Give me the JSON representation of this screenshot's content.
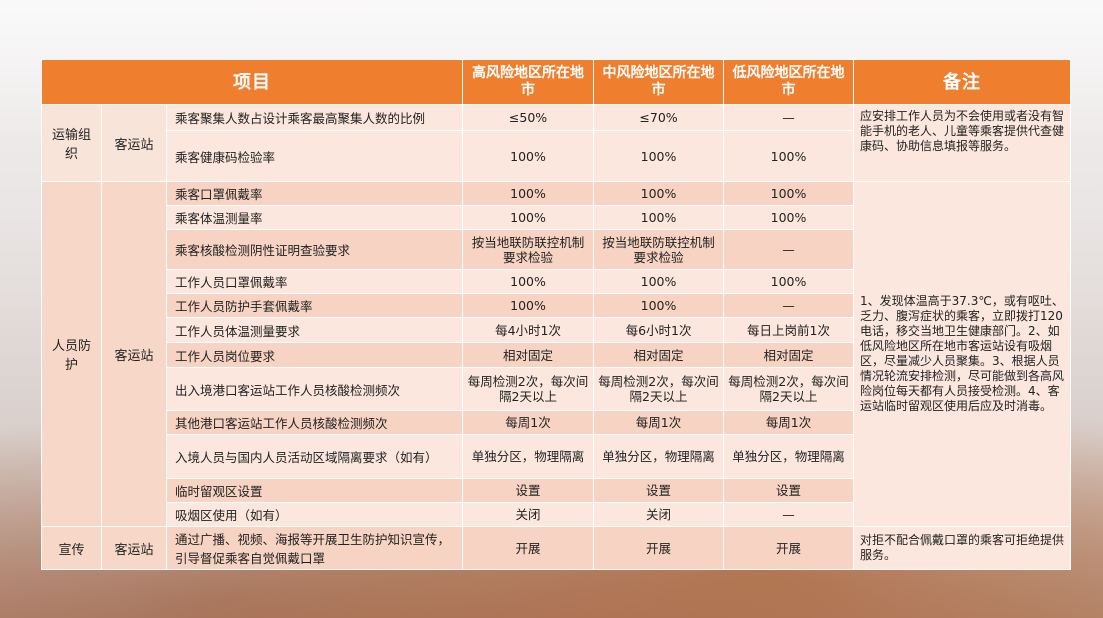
{
  "header": {
    "item": "项目",
    "high": "高风险地区所在地市",
    "mid": "中风险地区所在地市",
    "low": "低风险地区所在地市",
    "remark": "备注"
  },
  "groups": {
    "transport": {
      "cat": "运输组织",
      "sub": "客运站"
    },
    "protection": {
      "cat": "人员防护",
      "sub": "客运站"
    },
    "publicity": {
      "cat": "宣传",
      "sub": "客运站"
    }
  },
  "rows": [
    {
      "item": "乘客聚集人数占设计乘客最高聚集人数的比例",
      "high": "≤50%",
      "mid": "≤70%",
      "low": "—"
    },
    {
      "item": "乘客健康码检验率",
      "high": "100%",
      "mid": "100%",
      "low": "100%"
    },
    {
      "item": "乘客口罩佩戴率",
      "high": "100%",
      "mid": "100%",
      "low": "100%"
    },
    {
      "item": "乘客体温测量率",
      "high": "100%",
      "mid": "100%",
      "low": "100%"
    },
    {
      "item": "乘客核酸检测阴性证明查验要求",
      "high": "按当地联防联控机制要求检验",
      "mid": "按当地联防联控机制要求检验",
      "low": "—"
    },
    {
      "item": "工作人员口罩佩戴率",
      "high": "100%",
      "mid": "100%",
      "low": "100%"
    },
    {
      "item": "工作人员防护手套佩戴率",
      "high": "100%",
      "mid": "100%",
      "low": "—"
    },
    {
      "item": "工作人员体温测量要求",
      "high": "每4小时1次",
      "mid": "每6小时1次",
      "low": "每日上岗前1次"
    },
    {
      "item": "工作人员岗位要求",
      "high": "相对固定",
      "mid": "相对固定",
      "low": "相对固定"
    },
    {
      "item": "出入境港口客运站工作人员核酸检测频次",
      "high": "每周检测2次，每次间隔2天以上",
      "mid": "每周检测2次，每次间隔2天以上",
      "low": "每周检测2次，每次间隔2天以上"
    },
    {
      "item": "其他港口客运站工作人员核酸检测频次",
      "high": "每周1次",
      "mid": "每周1次",
      "low": "每周1次"
    },
    {
      "item": "入境人员与国内人员活动区域隔离要求（如有）",
      "high": "单独分区，物理隔离",
      "mid": "单独分区，物理隔离",
      "low": "单独分区，物理隔离"
    },
    {
      "item": "临时留观区设置",
      "high": "设置",
      "mid": "设置",
      "low": "设置"
    },
    {
      "item": "吸烟区使用（如有）",
      "high": "关闭",
      "mid": "关闭",
      "low": "—"
    },
    {
      "item": "通过广播、视频、海报等开展卫生防护知识宣传，引导督促乘客自觉佩戴口罩",
      "high": "开展",
      "mid": "开展",
      "low": "开展"
    }
  ],
  "remarks": {
    "transport": "应安排工作人员为不会使用或者没有智能手机的老人、儿童等乘客提供代查健康码、协助信息填报等服务。",
    "protection": "1、发现体温高于37.3℃，或有呕吐、乏力、腹泻症状的乘客，立即拨打120电话，移交当地卫生健康部门。2、如低风险地区所在地市客运站设有吸烟区，尽量减少人员聚集。3、根据人员情况轮流安排检测，尽可能做到各高风险岗位每天都有人员接受检测。4、客运站临时留观区使用后应及时消毒。",
    "publicity": "对拒不配合佩戴口罩的乘客可拒绝提供服务。"
  }
}
